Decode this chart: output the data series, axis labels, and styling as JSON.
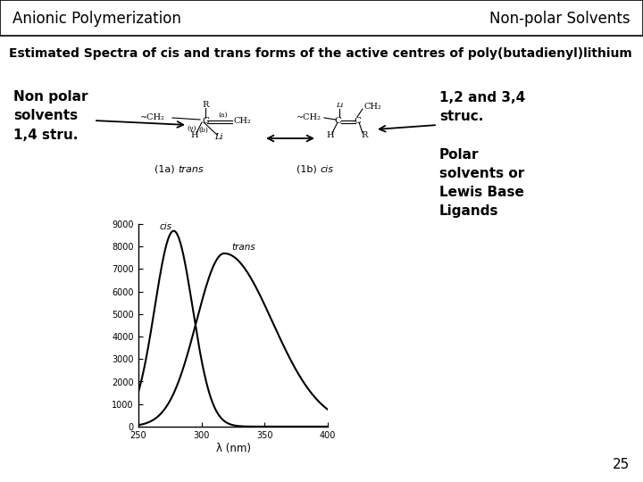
{
  "title_text": "Estimated Spectra of cis and trans forms of the active centres of poly(butadienyl)lithium",
  "header_left": "Anionic Polymerization",
  "header_right": "Non-polar Solvents",
  "xlabel": "λ (nm)",
  "xlim": [
    250,
    400
  ],
  "ylim": [
    0,
    9000
  ],
  "yticks": [
    0,
    1000,
    2000,
    3000,
    4000,
    5000,
    6000,
    7000,
    8000,
    9000
  ],
  "xticks": [
    250,
    300,
    350,
    400
  ],
  "annotation_cis": "cis",
  "annotation_trans": "trans",
  "label_non_polar": "Non polar\nsolvents\n1,4 stru.",
  "label_12_34": "1,2 and 3,4\nstruc.",
  "label_polar": "Polar\nsolvents or\nLewis Base\nLigands",
  "page_number": "25",
  "bg_color": "#ffffff",
  "line_color": "#000000"
}
